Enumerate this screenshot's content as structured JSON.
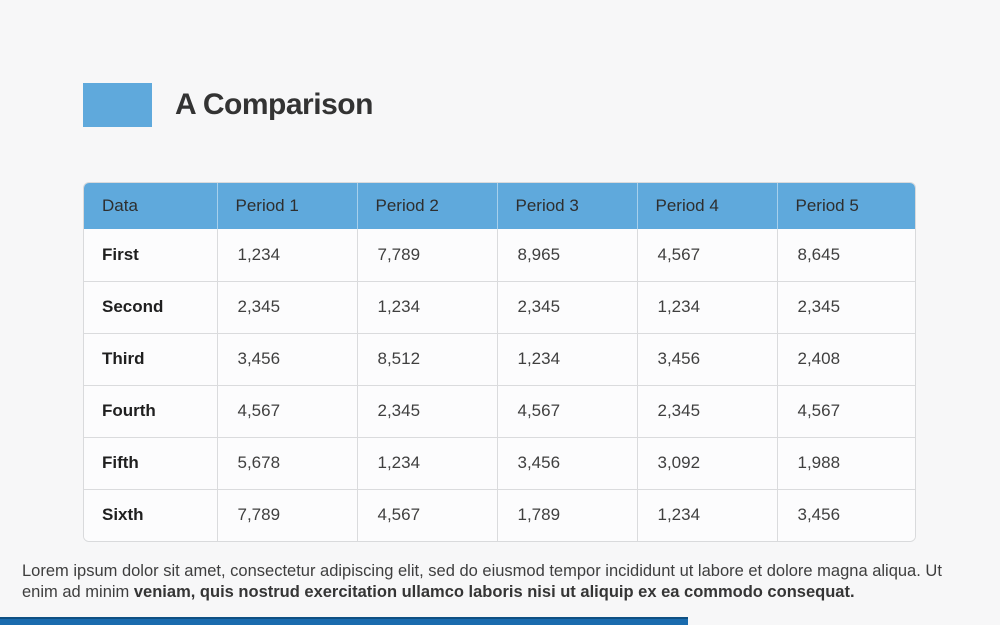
{
  "slide": {
    "title": "A Comparison",
    "accent_color": "#5fa9dc",
    "footer_bar_color": "#1a6bae",
    "background_color": "#f7f7f8",
    "body_normal": "Lorem ipsum dolor sit amet, consectetur adipiscing elit, sed do eiusmod tempor incididunt ut labore et dolore magna aliqua. Ut enim ad minim ",
    "body_bold": "veniam, quis nostrud exercitation ullamco laboris nisi ut aliquip ex ea commodo consequat."
  },
  "table": {
    "columns": [
      "Data",
      "Period 1",
      "Period 2",
      "Period 3",
      "Period 4",
      "Period 5"
    ],
    "rows": [
      {
        "label": "First",
        "values": [
          "1,234",
          "7,789",
          "8,965",
          "4,567",
          "8,645"
        ]
      },
      {
        "label": "Second",
        "values": [
          "2,345",
          "1,234",
          "2,345",
          "1,234",
          "2,345"
        ]
      },
      {
        "label": "Third",
        "values": [
          "3,456",
          "8,512",
          "1,234",
          "3,456",
          "2,408"
        ]
      },
      {
        "label": "Fourth",
        "values": [
          "4,567",
          "2,345",
          "4,567",
          "2,345",
          "4,567"
        ]
      },
      {
        "label": "Fifth",
        "values": [
          "5,678",
          "1,234",
          "3,456",
          "3,092",
          "1,988"
        ]
      },
      {
        "label": "Sixth",
        "values": [
          "7,789",
          "4,567",
          "1,789",
          "1,234",
          "3,456"
        ]
      }
    ]
  }
}
